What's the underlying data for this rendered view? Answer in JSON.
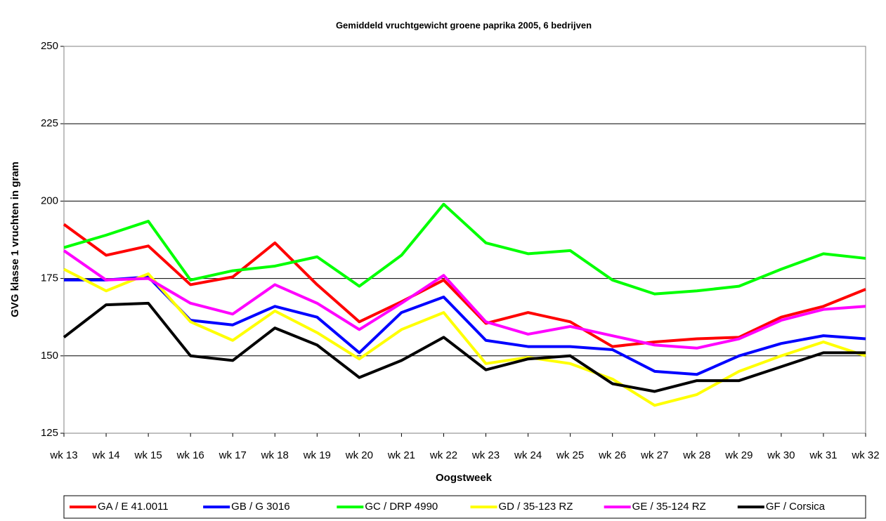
{
  "chart_data": {
    "type": "line",
    "title": "Gemiddeld vruchtgewicht groene paprika 2005, 6 bedrijven",
    "x_label": "Oogstweek",
    "y_label": "GVG klasse 1 vruchten in gram",
    "categories": [
      "wk 13",
      "wk 14",
      "wk 15",
      "wk 16",
      "wk 17",
      "wk 18",
      "wk 19",
      "wk 20",
      "wk 21",
      "wk 22",
      "wk 23",
      "wk 24",
      "wk 25",
      "wk 26",
      "wk 27",
      "wk 28",
      "wk 29",
      "wk 30",
      "wk 31",
      "wk 32"
    ],
    "ylim": [
      125,
      250
    ],
    "yticks": [
      125,
      150,
      175,
      200,
      225,
      250
    ],
    "grid": true,
    "series": [
      {
        "name": "GA / E 41.0011",
        "color": "#ff0000",
        "values": [
          192.5,
          182.5,
          185.5,
          173,
          175.5,
          186.5,
          173,
          161,
          167.5,
          174.5,
          160.5,
          164,
          161,
          153,
          154.5,
          155.5,
          156,
          162.5,
          166,
          171.5
        ]
      },
      {
        "name": "GB / G 3016",
        "color": "#0000ff",
        "values": [
          174.5,
          174.5,
          175.5,
          161.5,
          160,
          166,
          162.5,
          151,
          164,
          169,
          155,
          153,
          153,
          152,
          145,
          144,
          150,
          154,
          156.5,
          155.5
        ]
      },
      {
        "name": "GC / DRP 4990",
        "color": "#00ff00",
        "values": [
          185,
          189,
          193.5,
          174.5,
          177.5,
          179,
          182,
          172.5,
          182.5,
          199,
          186.5,
          183,
          184,
          174.5,
          170,
          171,
          172.5,
          178,
          183,
          181.5
        ]
      },
      {
        "name": "GD / 35-123 RZ",
        "color": "#ffff00",
        "values": [
          178,
          171,
          176.5,
          161,
          155,
          164.5,
          157.5,
          149,
          158.5,
          164,
          147.5,
          149.5,
          147.5,
          142.5,
          134,
          137.5,
          145,
          150,
          154.5,
          150
        ]
      },
      {
        "name": "GE / 35-124 RZ",
        "color": "#ff00ff",
        "values": [
          184,
          174.5,
          175,
          167,
          163.5,
          173,
          167,
          158.5,
          167,
          176,
          161,
          157,
          159.5,
          156.5,
          153.5,
          152.5,
          155.5,
          161.5,
          165,
          166
        ]
      },
      {
        "name": "GF / Corsica",
        "color": "#000000",
        "values": [
          156,
          166.5,
          167,
          150,
          148.5,
          159,
          153.5,
          143,
          148.5,
          156,
          145.5,
          149,
          150,
          141,
          138.5,
          142,
          142,
          146.5,
          151,
          151
        ]
      }
    ]
  }
}
